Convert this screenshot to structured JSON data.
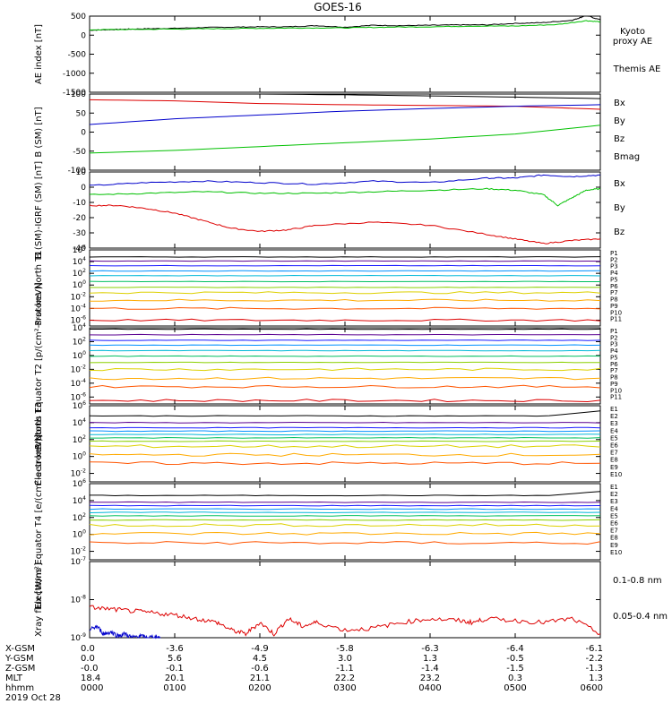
{
  "title": "GOES-16",
  "colors": {
    "black": "#000000",
    "green": "#00c000",
    "blue": "#0000cc",
    "red": "#dd0000",
    "p_colors": [
      "#000000",
      "#5a0090",
      "#1a1aff",
      "#0090ff",
      "#00b8d8",
      "#00c060",
      "#8ad000",
      "#ddd000",
      "#ffaa00",
      "#ff5500",
      "#dd0000"
    ],
    "e_colors": [
      "#000000",
      "#5a0090",
      "#1a1aff",
      "#0090ff",
      "#00b8d8",
      "#00c060",
      "#8ad000",
      "#ddd000",
      "#ffaa00",
      "#ff5500",
      "#dd0000"
    ]
  },
  "chart_data": [
    {
      "id": "ae",
      "type": "line",
      "ylabel": "AE index [nT]",
      "ylim": [
        -1500,
        500
      ],
      "yticks": [
        "500",
        "0",
        "-500",
        "-1000",
        "-1500"
      ],
      "ytick_values": [
        500,
        0,
        -500,
        -1000,
        -1500
      ],
      "legend": [
        "Kyoto",
        "proxy AE",
        "Themis AE"
      ],
      "series": [
        {
          "name": "Kyoto",
          "color": "black",
          "x": [
            0,
            10,
            20,
            30,
            45,
            60,
            80,
            100,
            120,
            140,
            160,
            180,
            200,
            220,
            240,
            260,
            280,
            300,
            320,
            340,
            345,
            350,
            360
          ],
          "y": [
            130,
            140,
            150,
            160,
            170,
            180,
            200,
            210,
            220,
            220,
            250,
            210,
            260,
            250,
            260,
            270,
            270,
            310,
            330,
            390,
            450,
            520,
            400
          ]
        },
        {
          "name": "proxy AE",
          "color": "green",
          "x": [
            0,
            30,
            60,
            90,
            120,
            150,
            180,
            210,
            240,
            270,
            300,
            330,
            350,
            360
          ],
          "y": [
            140,
            150,
            160,
            170,
            180,
            190,
            190,
            210,
            220,
            240,
            240,
            280,
            380,
            350
          ]
        }
      ]
    },
    {
      "id": "b",
      "type": "line",
      "ylabel": "B (SM) [nT]",
      "ylim": [
        -100,
        100
      ],
      "yticks": [
        "100",
        "50",
        "0",
        "-50",
        "-100"
      ],
      "ytick_values": [
        100,
        50,
        0,
        -50,
        -100
      ],
      "legend": [
        "Bx",
        "By",
        "Bz",
        "Bmag"
      ],
      "series": [
        {
          "name": "Bmag",
          "color": "black",
          "x": [
            0,
            60,
            120,
            180,
            240,
            300,
            360
          ],
          "y": [
            100,
            102,
            100,
            98,
            95,
            92,
            88
          ]
        },
        {
          "name": "Bz",
          "color": "red",
          "x": [
            0,
            60,
            120,
            180,
            240,
            300,
            360
          ],
          "y": [
            85,
            82,
            75,
            72,
            70,
            68,
            60
          ]
        },
        {
          "name": "Bx",
          "color": "blue",
          "x": [
            0,
            60,
            120,
            180,
            240,
            300,
            360
          ],
          "y": [
            20,
            35,
            45,
            55,
            62,
            68,
            72
          ]
        },
        {
          "name": "By",
          "color": "green",
          "x": [
            0,
            60,
            120,
            180,
            240,
            300,
            360
          ],
          "y": [
            -55,
            -48,
            -38,
            -28,
            -18,
            -5,
            18
          ]
        }
      ]
    },
    {
      "id": "dbi",
      "type": "line",
      "ylabel": "B (SM)-IGRF (SM) [nT]",
      "ylim": [
        -40,
        10
      ],
      "yticks": [
        "10",
        "0",
        "-10",
        "-20",
        "-30",
        "-40"
      ],
      "ytick_values": [
        10,
        0,
        -10,
        -20,
        -30,
        -40
      ],
      "legend": [
        "Bx",
        "By",
        "Bz"
      ],
      "series": [
        {
          "name": "Bx",
          "color": "blue",
          "x": [
            0,
            40,
            80,
            120,
            160,
            200,
            240,
            280,
            300,
            320,
            340,
            360
          ],
          "y": [
            1,
            3,
            4,
            3,
            2,
            4,
            3,
            6,
            6,
            8,
            7,
            8
          ]
        },
        {
          "name": "By",
          "color": "green",
          "x": [
            0,
            40,
            80,
            120,
            160,
            200,
            240,
            280,
            300,
            320,
            330,
            340,
            350,
            360
          ],
          "y": [
            -5,
            -4,
            -3,
            -4,
            -4,
            -3,
            -2,
            -1,
            -2,
            -5,
            -12,
            -7,
            -2,
            -1
          ]
        },
        {
          "name": "Bz",
          "color": "red",
          "x": [
            0,
            20,
            40,
            60,
            80,
            100,
            120,
            140,
            160,
            200,
            240,
            280,
            300,
            320,
            340,
            360
          ],
          "y": [
            -12,
            -12,
            -14,
            -17,
            -22,
            -27,
            -29,
            -28,
            -25,
            -23,
            -25,
            -31,
            -34,
            -37,
            -35,
            -34
          ]
        }
      ]
    },
    {
      "id": "pn",
      "type": "line",
      "log": true,
      "ylabel": "Protons North T1",
      "ylim_exp": [
        -7,
        6
      ],
      "yticks": [
        "10^6",
        "10^4",
        "10^2",
        "10^0",
        "10^-2",
        "10^-4",
        "10^-6"
      ],
      "ytick_values": [
        6,
        4,
        2,
        0,
        -2,
        -4,
        -6
      ],
      "legend": [
        "P1",
        "P2",
        "P3",
        "P4",
        "P5",
        "P6",
        "P7",
        "P8",
        "P9",
        "P10",
        "P11"
      ],
      "levels": [
        4.8,
        4.1,
        3.3,
        2.4,
        1.6,
        0.6,
        -0.4,
        -1.3,
        -2.6,
        -4.0,
        -6.0
      ]
    },
    {
      "id": "pe",
      "type": "line",
      "log": true,
      "ylabel": "Protons Equator T2 [p/(cm²-s-sr-keV)]",
      "ylim_exp": [
        -7,
        4
      ],
      "yticks": [
        "10^4",
        "10^2",
        "10^0",
        "10^-2",
        "10^-4",
        "10^-6"
      ],
      "ytick_values": [
        4,
        2,
        0,
        -2,
        -4,
        -6
      ],
      "legend": [
        "P1",
        "P2",
        "P3",
        "P4",
        "P5",
        "P6",
        "P7",
        "P8",
        "P9",
        "P10",
        "P11"
      ],
      "levels": [
        3.8,
        3.0,
        2.2,
        1.5,
        0.7,
        -0.1,
        -1.0,
        -2.0,
        -3.3,
        -4.5,
        -6.5
      ]
    },
    {
      "id": "en",
      "type": "line",
      "log": true,
      "ylabel": "Electrons North T3",
      "ylim_exp": [
        -3,
        6
      ],
      "yticks": [
        "10^6",
        "10^4",
        "10^2",
        "10^0",
        "10^-2"
      ],
      "ytick_values": [
        6,
        4,
        2,
        0,
        -2
      ],
      "legend": [
        "E1",
        "E2",
        "E3",
        "E4",
        "E5",
        "E6",
        "E7",
        "E8",
        "E9",
        "E10"
      ],
      "levels": [
        4.8,
        4.0,
        3.4,
        3.0,
        2.6,
        2.2,
        1.8,
        1.2,
        0.2,
        -0.8
      ]
    },
    {
      "id": "ee",
      "type": "line",
      "log": true,
      "ylabel": "Electrons Equator T4 [e/(cm²-s-sr-keV)]",
      "ylim_exp": [
        -3,
        6
      ],
      "yticks": [
        "10^6",
        "10^4",
        "10^2",
        "10^0",
        "10^-2"
      ],
      "ytick_values": [
        6,
        4,
        2,
        0,
        -2
      ],
      "legend": [
        "E1",
        "E2",
        "E3",
        "E4",
        "E5",
        "E6",
        "E7",
        "E8",
        "E9",
        "E10"
      ],
      "levels": [
        4.6,
        3.8,
        3.4,
        3.0,
        2.6,
        2.2,
        1.7,
        1.1,
        0.1,
        -1.0
      ]
    },
    {
      "id": "xray",
      "type": "line",
      "log": true,
      "ylabel": "Xray flux [W/m²]",
      "ylim_exp": [
        -9,
        -7
      ],
      "yticks": [
        "10^-7",
        "10^-8",
        "10^-9"
      ],
      "ytick_values": [
        -7,
        -8,
        -9
      ],
      "legend": [
        "0.1-0.8 nm",
        "0.05-0.4 nm"
      ],
      "series": [
        {
          "name": "0.1-0.8 nm",
          "color": "red",
          "x": [
            0,
            15,
            30,
            45,
            60,
            75,
            90,
            100,
            110,
            120,
            130,
            140,
            150,
            160,
            180,
            200,
            220,
            240,
            260,
            270,
            280,
            300,
            320,
            340,
            360
          ],
          "y": [
            -8.2,
            -8.25,
            -8.3,
            -8.35,
            -8.4,
            -8.5,
            -8.6,
            -8.8,
            -8.9,
            -8.6,
            -8.9,
            -8.5,
            -8.7,
            -8.6,
            -8.8,
            -8.75,
            -8.6,
            -8.5,
            -8.55,
            -8.6,
            -8.5,
            -8.55,
            -8.6,
            -8.5,
            -8.9
          ]
        },
        {
          "name": "0.05-0.4 nm",
          "color": "blue",
          "x": [
            0,
            5,
            10,
            15,
            20,
            25,
            30,
            35,
            40,
            45,
            50
          ],
          "y": [
            -8.8,
            -8.7,
            -8.9,
            -8.85,
            -8.95,
            -8.9,
            -9.0,
            -8.95,
            -9.0,
            -8.98,
            -9.0
          ]
        }
      ]
    }
  ],
  "xaxis": {
    "rows": [
      {
        "label": "X-GSM",
        "values": [
          "0.0",
          "-3.6",
          "-4.9",
          "-5.8",
          "-6.3",
          "-6.4",
          "-6.1"
        ]
      },
      {
        "label": "Y-GSM",
        "values": [
          "0.0",
          "5.6",
          "4.5",
          "3.0",
          "1.3",
          "-0.5",
          "-2.2"
        ]
      },
      {
        "label": "Z-GSM",
        "values": [
          "-0.0",
          "-0.1",
          "-0.6",
          "-1.1",
          "-1.4",
          "-1.5",
          "-1.3"
        ]
      },
      {
        "label": "MLT",
        "values": [
          "18.4",
          "20.1",
          "21.1",
          "22.2",
          "23.2",
          "0.3",
          "1.3"
        ]
      },
      {
        "label": "hhmm",
        "values": [
          "0000",
          "0100",
          "0200",
          "0300",
          "0400",
          "0500",
          "0600"
        ]
      }
    ],
    "date": "2019 Oct 28"
  }
}
